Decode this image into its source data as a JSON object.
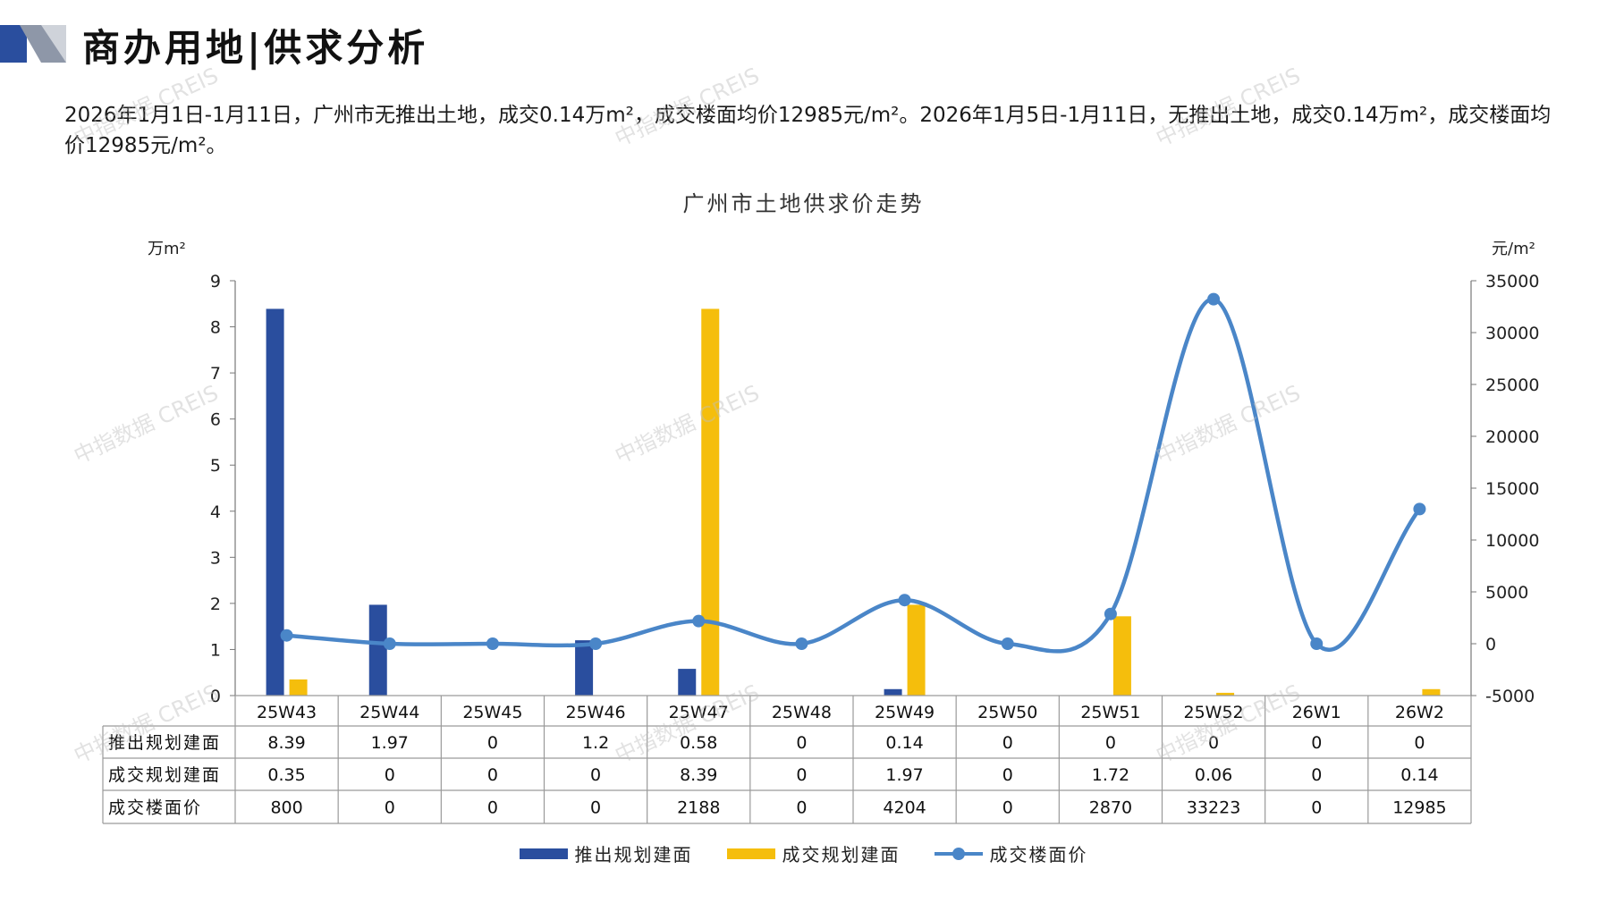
{
  "header": {
    "title": "商办用地|供求分析",
    "summary": "2026年1月1日-1月11日，广州市无推出土地，成交0.14万m²，成交楼面均价12985元/m²。2026年1月5日-1月11日，无推出土地，成交0.14万m²，成交楼面均价12985元/m²。"
  },
  "watermark": "中指数据 CREIS",
  "colors": {
    "supply": "#2A4E9E",
    "deal": "#F5BE0C",
    "price": "#4A86C8",
    "grid": "#9a9a9a"
  },
  "chart_data": {
    "type": "bar",
    "title": "广州市土地供求价走势",
    "categories": [
      "25W43",
      "25W44",
      "25W45",
      "25W46",
      "25W47",
      "25W48",
      "25W49",
      "25W50",
      "25W51",
      "25W52",
      "26W1",
      "26W2"
    ],
    "y_left": {
      "unit": "万m²",
      "range": [
        0,
        9
      ],
      "ticks": [
        "0",
        "1",
        "2",
        "3",
        "4",
        "5",
        "6",
        "7",
        "8",
        "9"
      ]
    },
    "y_right": {
      "unit": "元/m²",
      "range": [
        -5000,
        35000
      ],
      "ticks": [
        "-5000",
        "0",
        "5000",
        "10000",
        "15000",
        "20000",
        "25000",
        "30000",
        "35000"
      ]
    },
    "series": [
      {
        "name": "推出规划建面",
        "type": "bar",
        "axis": "left",
        "values": [
          8.39,
          1.97,
          0,
          1.2,
          0.58,
          0,
          0.14,
          0,
          0,
          0,
          0,
          0
        ],
        "labels": [
          "8.39",
          "1.97",
          "0",
          "1.2",
          "0.58",
          "0",
          "0.14",
          "0",
          "0",
          "0",
          "0",
          "0"
        ]
      },
      {
        "name": "成交规划建面",
        "type": "bar",
        "axis": "left",
        "values": [
          0.35,
          0,
          0,
          0,
          8.39,
          0,
          1.97,
          0,
          1.72,
          0.06,
          0,
          0.14
        ],
        "labels": [
          "0.35",
          "0",
          "0",
          "0",
          "8.39",
          "0",
          "1.97",
          "0",
          "1.72",
          "0.06",
          "0",
          "0.14"
        ]
      },
      {
        "name": "成交楼面价",
        "type": "line",
        "axis": "right",
        "values": [
          800,
          0,
          0,
          0,
          2188,
          0,
          4204,
          0,
          2870,
          33223,
          0,
          12985
        ],
        "labels": [
          "800",
          "0",
          "0",
          "0",
          "2188",
          "0",
          "4204",
          "0",
          "2870",
          "33223",
          "0",
          "12985"
        ]
      }
    ],
    "legend": "bottom",
    "grid": false,
    "data_table": true
  }
}
